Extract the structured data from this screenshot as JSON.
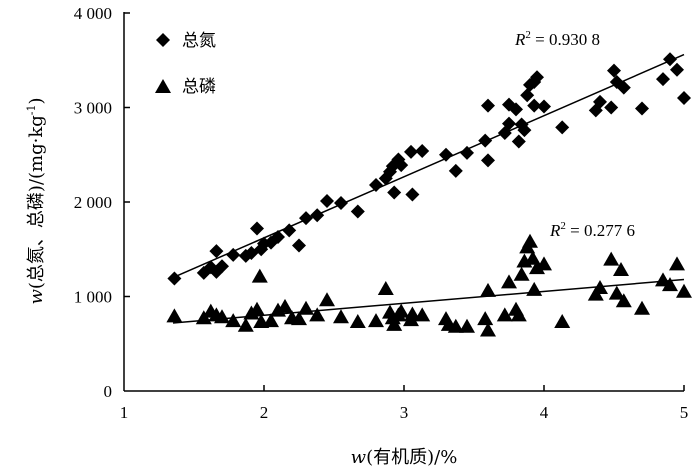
{
  "chart_data": {
    "type": "scatter",
    "xlabel_var": "w",
    "xlabel": "(有机质)/%",
    "ylabel_var": "w",
    "ylabel": "(总氮、总磷)/(mg·kg",
    "ylabel_sup": "-1",
    "ylabel_end": ")",
    "xlim": [
      1,
      5
    ],
    "ylim": [
      0,
      4000
    ],
    "xticks": [
      1,
      2,
      3,
      4,
      5
    ],
    "xtick_labels": [
      "1",
      "2",
      "3",
      "4",
      "5"
    ],
    "yticks": [
      0,
      1000,
      2000,
      3000,
      4000
    ],
    "ytick_labels": [
      "0",
      "1 000",
      "2 000",
      "3 000",
      "4 000"
    ],
    "legend_position": "top-left",
    "grid": false,
    "series": [
      {
        "name": "总氮",
        "marker": "diamond",
        "r2_prefix": "R",
        "r2_sup": "2",
        "r2_value": " = 0.930 8",
        "trend": [
          [
            1.35,
            1200
          ],
          [
            5.0,
            3560
          ]
        ],
        "points": [
          [
            1.36,
            1190
          ],
          [
            1.57,
            1250
          ],
          [
            1.62,
            1310
          ],
          [
            1.66,
            1260
          ],
          [
            1.66,
            1480
          ],
          [
            1.7,
            1320
          ],
          [
            1.78,
            1440
          ],
          [
            1.87,
            1430
          ],
          [
            1.91,
            1460
          ],
          [
            1.95,
            1720
          ],
          [
            1.98,
            1500
          ],
          [
            2.0,
            1560
          ],
          [
            2.05,
            1570
          ],
          [
            2.1,
            1630
          ],
          [
            2.18,
            1700
          ],
          [
            2.25,
            1540
          ],
          [
            2.3,
            1830
          ],
          [
            2.38,
            1860
          ],
          [
            2.45,
            2010
          ],
          [
            2.55,
            1990
          ],
          [
            2.67,
            1900
          ],
          [
            2.8,
            2180
          ],
          [
            2.87,
            2250
          ],
          [
            2.9,
            2320
          ],
          [
            2.92,
            2380
          ],
          [
            2.93,
            2100
          ],
          [
            2.96,
            2450
          ],
          [
            2.98,
            2390
          ],
          [
            3.05,
            2530
          ],
          [
            3.06,
            2080
          ],
          [
            3.13,
            2540
          ],
          [
            3.3,
            2500
          ],
          [
            3.37,
            2330
          ],
          [
            3.45,
            2520
          ],
          [
            3.58,
            2650
          ],
          [
            3.6,
            3020
          ],
          [
            3.6,
            2440
          ],
          [
            3.72,
            2730
          ],
          [
            3.75,
            3030
          ],
          [
            3.75,
            2830
          ],
          [
            3.8,
            2980
          ],
          [
            3.82,
            2640
          ],
          [
            3.84,
            2820
          ],
          [
            3.86,
            2760
          ],
          [
            3.88,
            3130
          ],
          [
            3.9,
            3240
          ],
          [
            3.93,
            3270
          ],
          [
            3.93,
            3020
          ],
          [
            3.95,
            3320
          ],
          [
            4.0,
            3010
          ],
          [
            4.13,
            2790
          ],
          [
            4.37,
            2970
          ],
          [
            4.4,
            3060
          ],
          [
            4.48,
            3000
          ],
          [
            4.5,
            3390
          ],
          [
            4.52,
            3270
          ],
          [
            4.57,
            3210
          ],
          [
            4.7,
            2990
          ],
          [
            4.85,
            3300
          ],
          [
            4.9,
            3510
          ],
          [
            4.95,
            3400
          ],
          [
            5.0,
            3100
          ]
        ]
      },
      {
        "name": "总磷",
        "marker": "triangle",
        "r2_prefix": "R",
        "r2_sup": "2",
        "r2_value": " = 0.277 6",
        "trend": [
          [
            1.35,
            720
          ],
          [
            5.0,
            1180
          ]
        ],
        "points": [
          [
            1.36,
            790
          ],
          [
            1.57,
            770
          ],
          [
            1.62,
            840
          ],
          [
            1.66,
            800
          ],
          [
            1.7,
            780
          ],
          [
            1.78,
            740
          ],
          [
            1.87,
            690
          ],
          [
            1.91,
            820
          ],
          [
            1.95,
            860
          ],
          [
            1.97,
            1210
          ],
          [
            1.98,
            730
          ],
          [
            2.05,
            740
          ],
          [
            2.1,
            850
          ],
          [
            2.15,
            890
          ],
          [
            2.2,
            770
          ],
          [
            2.25,
            760
          ],
          [
            2.3,
            870
          ],
          [
            2.38,
            800
          ],
          [
            2.45,
            960
          ],
          [
            2.55,
            780
          ],
          [
            2.67,
            730
          ],
          [
            2.8,
            740
          ],
          [
            2.87,
            1080
          ],
          [
            2.9,
            830
          ],
          [
            2.92,
            770
          ],
          [
            2.93,
            700
          ],
          [
            2.96,
            800
          ],
          [
            2.98,
            840
          ],
          [
            3.05,
            750
          ],
          [
            3.06,
            810
          ],
          [
            3.13,
            800
          ],
          [
            3.3,
            760
          ],
          [
            3.32,
            700
          ],
          [
            3.37,
            680
          ],
          [
            3.45,
            680
          ],
          [
            3.58,
            760
          ],
          [
            3.6,
            640
          ],
          [
            3.6,
            1060
          ],
          [
            3.72,
            800
          ],
          [
            3.75,
            1150
          ],
          [
            3.8,
            860
          ],
          [
            3.82,
            800
          ],
          [
            3.84,
            1230
          ],
          [
            3.86,
            1370
          ],
          [
            3.88,
            1520
          ],
          [
            3.9,
            1580
          ],
          [
            3.92,
            1400
          ],
          [
            3.93,
            1070
          ],
          [
            3.95,
            1300
          ],
          [
            4.0,
            1340
          ],
          [
            4.13,
            730
          ],
          [
            4.37,
            1020
          ],
          [
            4.4,
            1090
          ],
          [
            4.48,
            1390
          ],
          [
            4.52,
            1030
          ],
          [
            4.55,
            1280
          ],
          [
            4.57,
            950
          ],
          [
            4.7,
            870
          ],
          [
            4.85,
            1170
          ],
          [
            4.9,
            1120
          ],
          [
            4.95,
            1340
          ],
          [
            5.0,
            1050
          ]
        ]
      }
    ]
  }
}
